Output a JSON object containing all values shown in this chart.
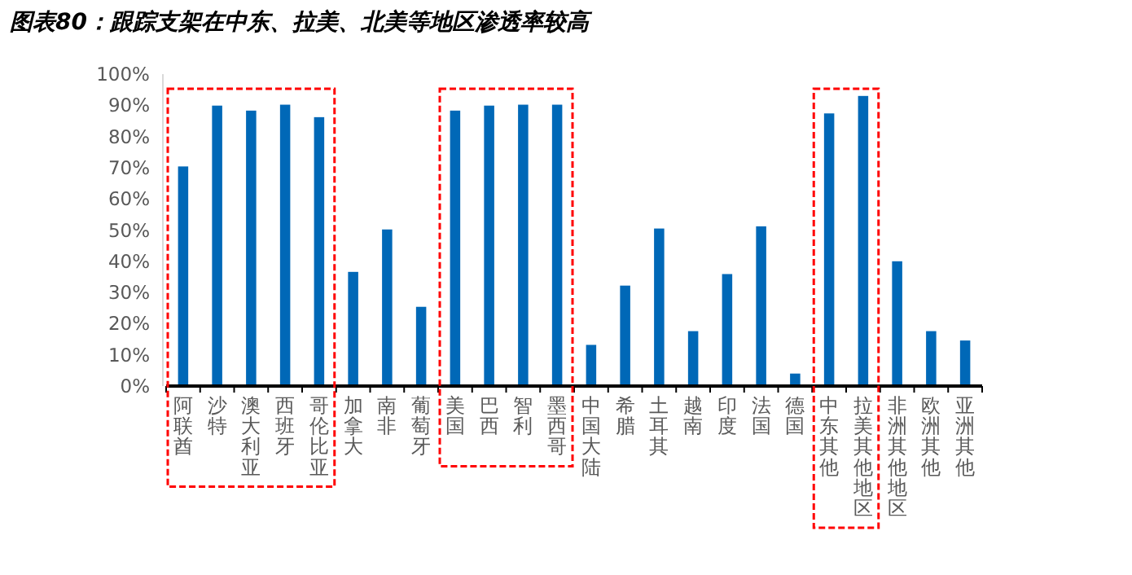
{
  "chart_data": {
    "type": "bar",
    "title": "图表80：跟踪支架在中东、拉美、北美等地区渗透率较高",
    "categories": [
      "阿联酋",
      "沙特",
      "澳大利亚",
      "西班牙",
      "哥伦比亚",
      "加拿大",
      "南非",
      "葡萄牙",
      "美国",
      "巴西",
      "智利",
      "墨西哥",
      "中国大陆",
      "希腊",
      "土耳其",
      "越南",
      "印度",
      "法国",
      "德国",
      "中东其他",
      "拉美其他地区",
      "非洲其他地区",
      "欧洲其他",
      "亚洲其他"
    ],
    "values": [
      70.4,
      89.9,
      88.3,
      90.2,
      86.2,
      36.6,
      50.2,
      25.4,
      88.3,
      89.9,
      90.2,
      90.2,
      13.2,
      32.2,
      50.5,
      17.6,
      35.9,
      51.2,
      4,
      87.4,
      93,
      40,
      17.6,
      14.6
    ],
    "color": "#0068b7",
    "ylim": [
      0,
      100
    ],
    "yticks": [
      {
        "value": 0,
        "label": "0%"
      },
      {
        "value": 10,
        "label": "10%"
      },
      {
        "value": 20,
        "label": "20%"
      },
      {
        "value": 30,
        "label": "30%"
      },
      {
        "value": 40,
        "label": "40%"
      },
      {
        "value": 50,
        "label": "50%"
      },
      {
        "value": 60,
        "label": "60%"
      },
      {
        "value": 70,
        "label": "70%"
      },
      {
        "value": 80,
        "label": "80%"
      },
      {
        "value": 90,
        "label": "90%"
      },
      {
        "value": 100,
        "label": "100%"
      }
    ],
    "grid": false
  }
}
